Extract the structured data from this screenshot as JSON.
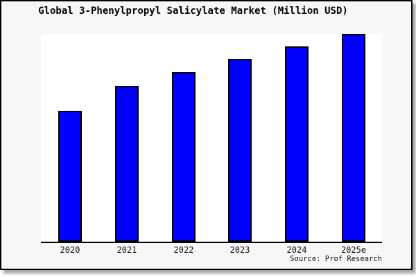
{
  "title": "Global 3-Phenylpropyl Salicylate Market (Million USD)",
  "source_label": "Source: Prof Research",
  "colors": {
    "canvas_bg": "#f7f7f7",
    "plot_bg": "#ffffff",
    "bar_fill": "#0000ff",
    "bar_edge": "#000000",
    "axis_line": "#000000",
    "text": "#111111",
    "frame_border": "#000000",
    "shadow": "#a8a8a8"
  },
  "chart_data": {
    "type": "bar",
    "title": "Global 3-Phenylpropyl Salicylate Market (Million USD)",
    "categories": [
      "2020",
      "2021",
      "2022",
      "2023",
      "2024",
      "2025e"
    ],
    "values": [
      63,
      75,
      81.5,
      88,
      94,
      100
    ],
    "value_units": "relative bar height, percent of 2025e bar (no y-axis scale shown in image)",
    "xlabel": "",
    "ylabel": "",
    "ylim": [
      0,
      100
    ],
    "grid": false,
    "legend": false,
    "y_axis_shown": false,
    "bar_color": "#0000ff",
    "bar_edge_color": "#000000",
    "source_label": "Source: Prof Research"
  }
}
